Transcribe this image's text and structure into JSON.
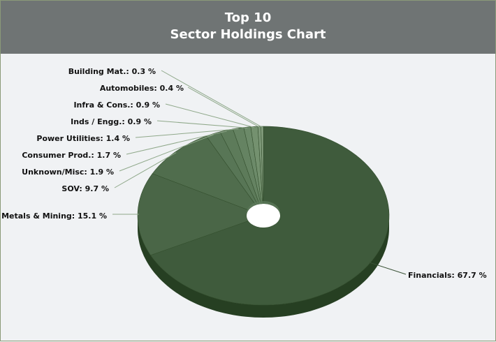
{
  "header": {
    "title_line1": "Top 10",
    "title_line2": "Sector Holdings Chart"
  },
  "colors": {
    "header_bg": "#6f7474",
    "slice_base": "#3f5b3c",
    "background": "#f0f2f4"
  },
  "chart_data": {
    "type": "pie",
    "title": "Top 10 Sector Holdings Chart",
    "style": "3d-donut",
    "categories": [
      "Financials",
      "Metals & Mining",
      "SOV",
      "Unknown/Misc",
      "Consumer Prod.",
      "Power Utilities",
      "Inds / Engg.",
      "Infra & Cons.",
      "Automobiles",
      "Building Mat."
    ],
    "values": [
      67.7,
      15.1,
      9.7,
      1.9,
      1.7,
      1.4,
      0.9,
      0.9,
      0.4,
      0.3
    ],
    "labels": [
      "Financials: 67.7 %",
      "Metals & Mining: 15.1 %",
      "SOV: 9.7 %",
      "Unknown/Misc: 1.9 %",
      "Consumer Prod.: 1.7 %",
      "Power Utilities: 1.4 %",
      "Inds / Engg.: 0.9 %",
      "Infra & Cons.: 0.9 %",
      "Automobiles: 0.4 %",
      "Building Mat.: 0.3 %"
    ],
    "legend": "none"
  }
}
